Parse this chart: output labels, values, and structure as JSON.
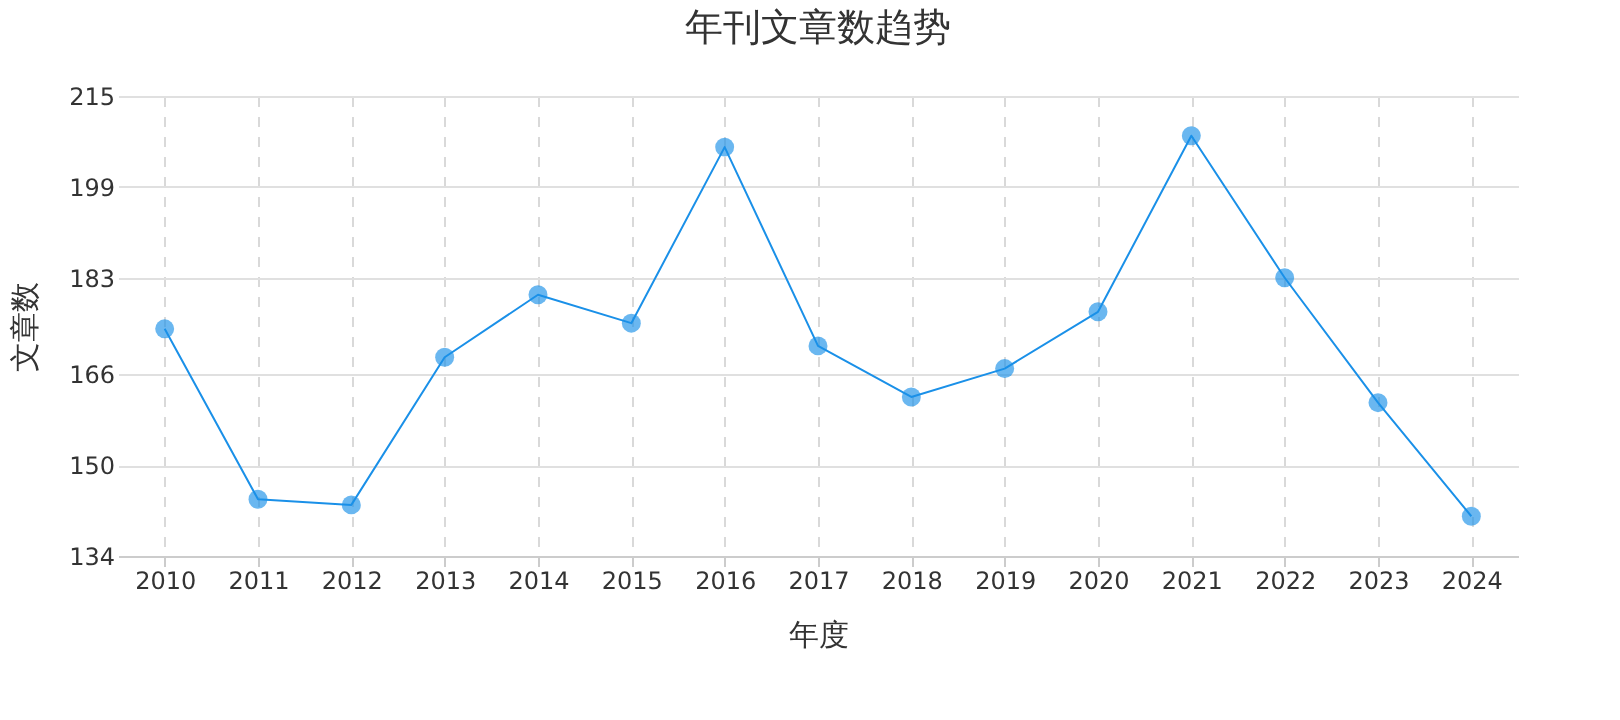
{
  "chart_data": {
    "type": "line",
    "title": "年刊文章数趋势",
    "xlabel": "年度",
    "ylabel": "文章数",
    "categories": [
      "2010",
      "2011",
      "2012",
      "2013",
      "2014",
      "2015",
      "2016",
      "2017",
      "2018",
      "2019",
      "2020",
      "2021",
      "2022",
      "2023",
      "2024"
    ],
    "series": [
      {
        "color": "#1a90e8",
        "values": [
          174,
          144,
          143,
          169,
          180,
          175,
          206,
          171,
          162,
          167,
          177,
          208,
          183,
          161,
          141
        ]
      }
    ],
    "ylim": [
      134,
      215
    ],
    "yticks": [
      134,
      150,
      166,
      183,
      199,
      215
    ],
    "grid": true,
    "marker": "circle",
    "line_style": "solid"
  }
}
